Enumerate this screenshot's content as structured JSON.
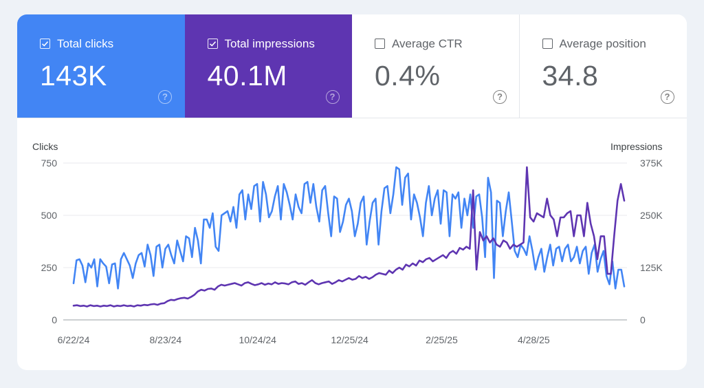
{
  "metrics": {
    "clicks": {
      "label": "Total clicks",
      "value": "143K",
      "checked": true,
      "color": "#4285f4"
    },
    "impressions": {
      "label": "Total impressions",
      "value": "40.1M",
      "checked": true,
      "color": "#5e35b1"
    },
    "ctr": {
      "label": "Average CTR",
      "value": "0.4%",
      "checked": false
    },
    "position": {
      "label": "Average position",
      "value": "34.8",
      "checked": false
    }
  },
  "help_icon": "?",
  "chart_data": {
    "type": "line",
    "x_tick_labels": [
      "6/22/24",
      "8/23/24",
      "10/24/24",
      "12/25/24",
      "2/25/25",
      "4/28/25"
    ],
    "x_tick_day_offsets": [
      0,
      62,
      124,
      186,
      248,
      310
    ],
    "x_range_days": [
      0,
      371
    ],
    "left_axis": {
      "label": "Clicks",
      "ticks": [
        "750",
        "500",
        "250",
        "0"
      ],
      "tick_values": [
        750,
        500,
        250,
        0
      ],
      "range": [
        0,
        750
      ]
    },
    "right_axis": {
      "label": "Impressions",
      "ticks": [
        "375K",
        "250K",
        "125K",
        "0"
      ],
      "tick_values": [
        375000,
        250000,
        125000,
        0
      ],
      "range": [
        0,
        375000
      ]
    },
    "grid": true,
    "series": [
      {
        "name": "Clicks",
        "axis": "left",
        "color": "#4285f4",
        "sample_interval_days": 3,
        "values": [
          175,
          285,
          290,
          260,
          180,
          270,
          250,
          290,
          160,
          290,
          270,
          255,
          175,
          265,
          270,
          150,
          290,
          320,
          290,
          260,
          200,
          270,
          310,
          320,
          255,
          360,
          310,
          210,
          350,
          360,
          250,
          340,
          360,
          310,
          270,
          380,
          330,
          280,
          400,
          390,
          300,
          440,
          380,
          270,
          480,
          480,
          440,
          510,
          350,
          330,
          500,
          510,
          520,
          470,
          540,
          440,
          600,
          620,
          480,
          600,
          530,
          640,
          650,
          470,
          660,
          600,
          490,
          520,
          590,
          640,
          480,
          650,
          610,
          550,
          480,
          600,
          540,
          510,
          650,
          660,
          560,
          650,
          540,
          470,
          620,
          640,
          510,
          400,
          590,
          580,
          420,
          470,
          550,
          580,
          520,
          400,
          460,
          560,
          590,
          360,
          470,
          560,
          580,
          360,
          520,
          630,
          640,
          510,
          600,
          730,
          720,
          550,
          680,
          700,
          480,
          600,
          560,
          490,
          400,
          560,
          640,
          500,
          580,
          620,
          460,
          620,
          610,
          400,
          600,
          580,
          610,
          440,
          580,
          500,
          600,
          440,
          590,
          600,
          490,
          300,
          680,
          610,
          200,
          570,
          560,
          400,
          520,
          610,
          470,
          330,
          300,
          360,
          340,
          310,
          400,
          330,
          240,
          300,
          340,
          230,
          300,
          360,
          260,
          340,
          350,
          280,
          340,
          360,
          280,
          300,
          350,
          270,
          330,
          350,
          220,
          320,
          360,
          230,
          290,
          330,
          210,
          170,
          280,
          150,
          240,
          240,
          160
        ]
      },
      {
        "name": "Impressions",
        "axis": "right",
        "color": "#5e35b1",
        "sample_interval_days": 3,
        "values": [
          34000,
          35000,
          33000,
          34000,
          32000,
          35000,
          33000,
          34000,
          32000,
          34000,
          33000,
          35000,
          32000,
          34000,
          33000,
          35000,
          33000,
          34000,
          32000,
          35000,
          34000,
          36000,
          35000,
          37000,
          38000,
          36000,
          39000,
          40000,
          45000,
          48000,
          47000,
          50000,
          52000,
          53000,
          51000,
          55000,
          60000,
          68000,
          72000,
          70000,
          74000,
          75000,
          72000,
          80000,
          84000,
          82000,
          84000,
          86000,
          88000,
          85000,
          82000,
          88000,
          90000,
          86000,
          83000,
          85000,
          88000,
          84000,
          87000,
          85000,
          90000,
          86000,
          88000,
          87000,
          85000,
          90000,
          92000,
          86000,
          88000,
          84000,
          90000,
          95000,
          88000,
          85000,
          88000,
          90000,
          92000,
          86000,
          90000,
          95000,
          92000,
          96000,
          100000,
          96000,
          98000,
          105000,
          100000,
          103000,
          98000,
          102000,
          108000,
          112000,
          110000,
          108000,
          118000,
          112000,
          120000,
          125000,
          120000,
          132000,
          128000,
          135000,
          130000,
          142000,
          138000,
          145000,
          148000,
          140000,
          145000,
          150000,
          155000,
          148000,
          160000,
          165000,
          158000,
          172000,
          168000,
          175000,
          170000,
          310000,
          120000,
          210000,
          190000,
          200000,
          185000,
          195000,
          180000,
          175000,
          190000,
          185000,
          170000,
          180000,
          175000,
          180000,
          185000,
          365000,
          245000,
          235000,
          255000,
          250000,
          245000,
          290000,
          250000,
          240000,
          200000,
          245000,
          245000,
          255000,
          260000,
          200000,
          250000,
          250000,
          200000,
          280000,
          230000,
          200000,
          145000,
          200000,
          200000,
          110000,
          110000,
          200000,
          285000,
          325000,
          285000
        ]
      }
    ]
  }
}
